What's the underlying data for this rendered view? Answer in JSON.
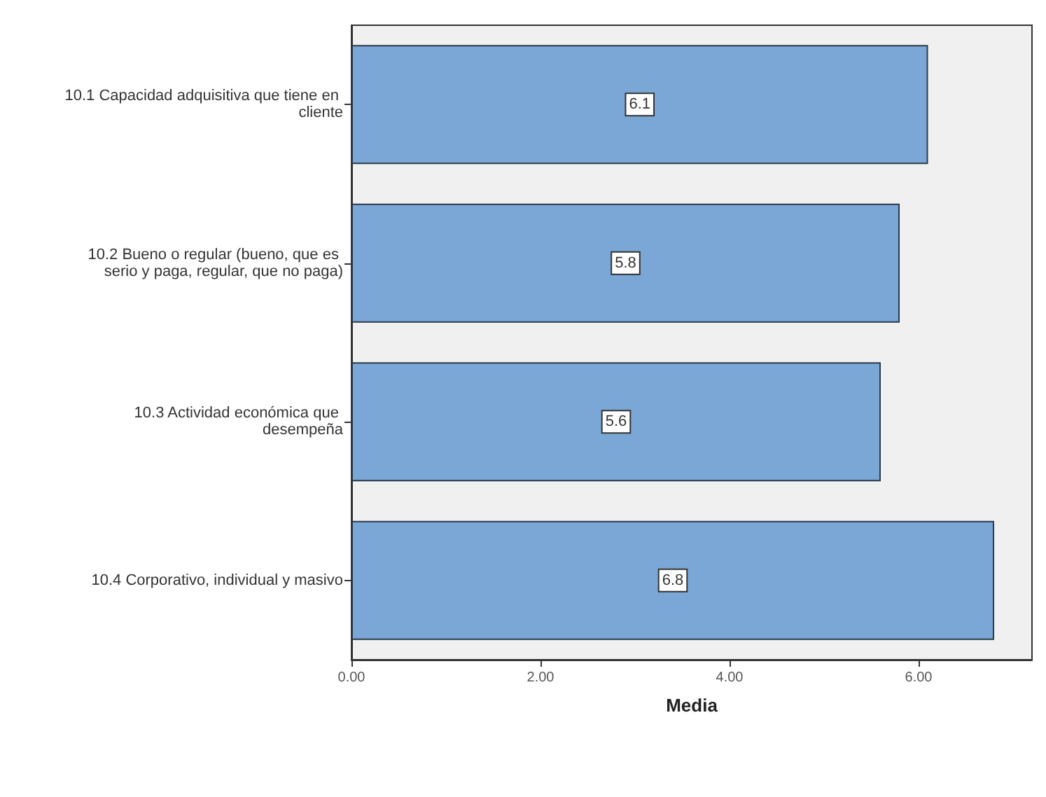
{
  "chart_data": {
    "type": "bar",
    "orientation": "horizontal",
    "xlabel": "Media",
    "categories": [
      "10.1 Capacidad adquisitiva que tiene en cliente",
      "10.2 Bueno o regular (bueno, que es serio y paga, regular, que no paga)",
      "10.3 Actividad económica que desempeña",
      "10.4 Corporativo, individual y masivo"
    ],
    "values": [
      6.1,
      5.8,
      5.6,
      6.8
    ],
    "color": "#7ba7d6",
    "data_labels": true,
    "xlim": [
      0,
      7.2
    ],
    "xticks": [
      {
        "value": 0,
        "label": "0.00"
      },
      {
        "value": 2,
        "label": "2.00"
      },
      {
        "value": 4,
        "label": "4.00"
      },
      {
        "value": 6,
        "label": "6.00"
      }
    ],
    "grid": false
  }
}
